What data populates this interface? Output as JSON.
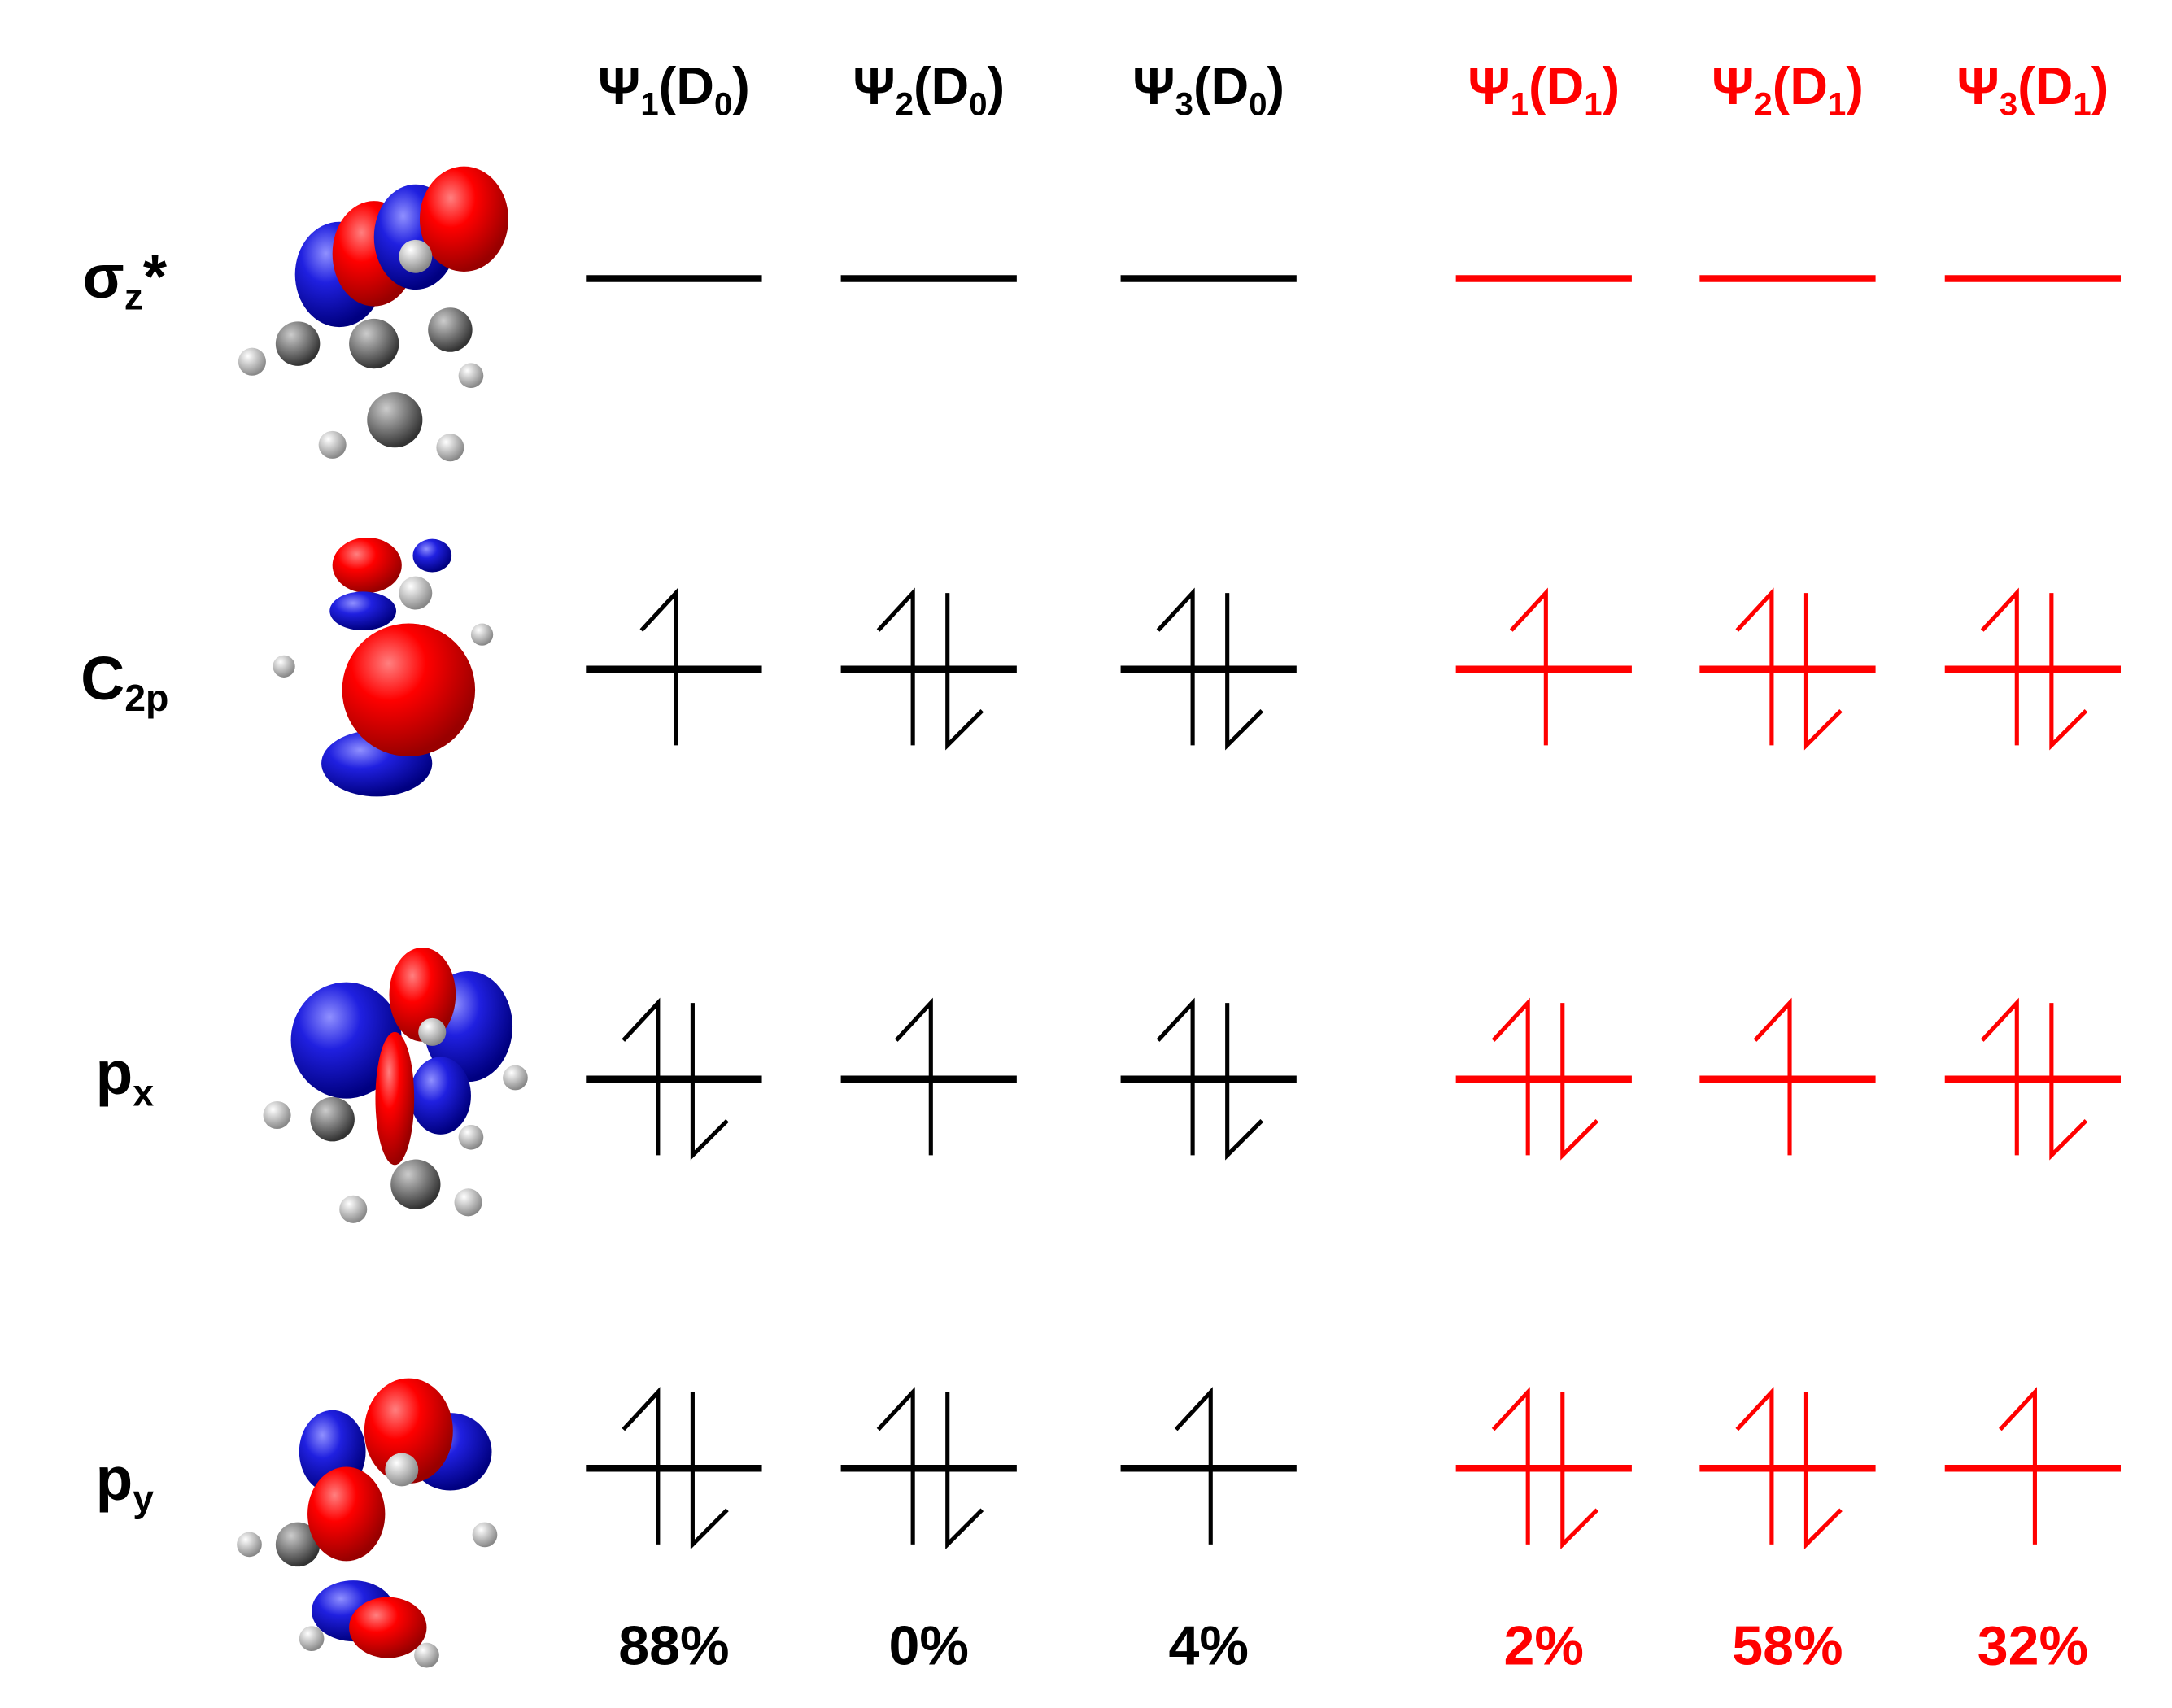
{
  "columns": [
    {
      "label": [
        "Ψ",
        "1",
        "(D",
        "0",
        ")"
      ],
      "color": "#000000",
      "percent": "88%"
    },
    {
      "label": [
        "Ψ",
        "2",
        "(D",
        "0",
        ")"
      ],
      "color": "#000000",
      "percent": "0%"
    },
    {
      "label": [
        "Ψ",
        "3",
        "(D",
        "0",
        ")"
      ],
      "color": "#000000",
      "percent": "4%"
    },
    {
      "label": [
        "Ψ",
        "1",
        "(D",
        "1",
        ")"
      ],
      "color": "#ff0000",
      "percent": "2%"
    },
    {
      "label": [
        "Ψ",
        "2",
        "(D",
        "1",
        ")"
      ],
      "color": "#ff0000",
      "percent": "58%"
    },
    {
      "label": [
        "Ψ",
        "3",
        "(D",
        "1",
        ")"
      ],
      "color": "#ff0000",
      "percent": "32%"
    }
  ],
  "rows": [
    {
      "label": [
        "σ",
        "z",
        "*"
      ],
      "occupancy": [
        0,
        0,
        0,
        0,
        0,
        0
      ]
    },
    {
      "label": [
        "C",
        "2p"
      ],
      "occupancy": [
        1,
        2,
        2,
        1,
        2,
        2
      ]
    },
    {
      "label": [
        "p",
        "x"
      ],
      "occupancy": [
        2,
        1,
        2,
        2,
        1,
        2
      ]
    },
    {
      "label": [
        "p",
        "y"
      ],
      "occupancy": [
        2,
        2,
        1,
        2,
        2,
        1
      ]
    }
  ]
}
